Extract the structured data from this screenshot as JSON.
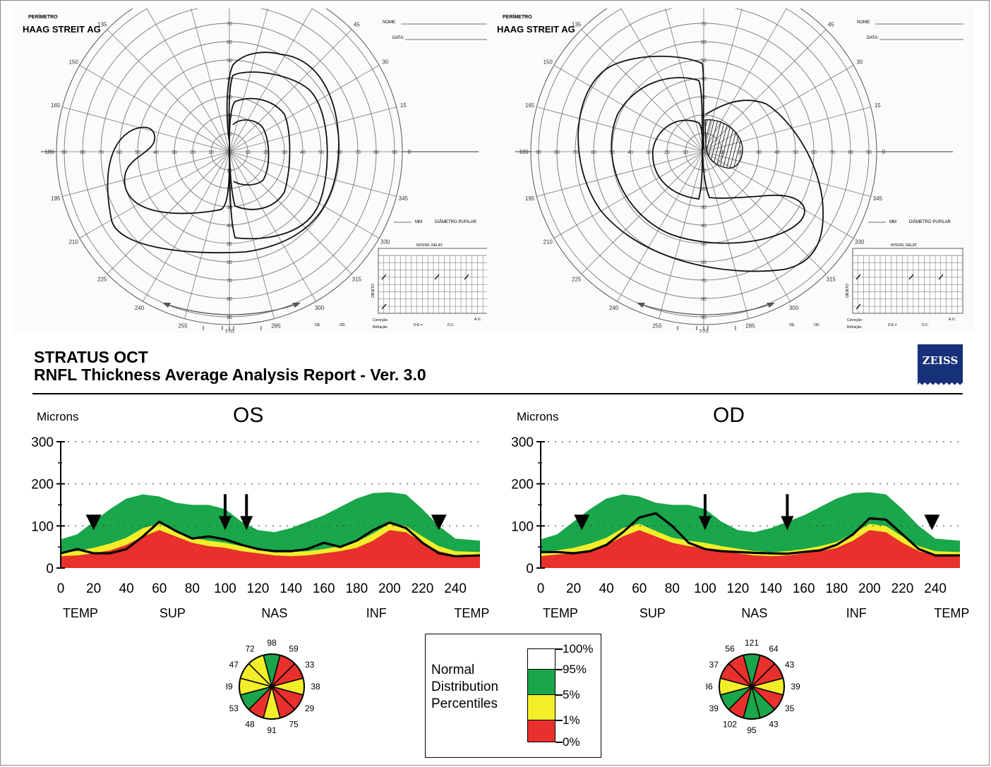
{
  "perimetry_left": {
    "brand_small": "PERÍMETRO",
    "brand": "HAAG STREIT AG",
    "nome": "NOME:",
    "data": "DATA:",
    "mm": "MM",
    "diametro": "DIÂMETRO PUPILAR",
    "intens": "INTENS. RELAT.",
    "objeto": "OBJETO",
    "correcao": "Correção:",
    "refracao": "Refração:",
    "de": "D.E.=",
    "dc": "D.C.",
    "av": "A.V.:",
    "oe": "OE.",
    "od": "OD.",
    "angle_labels": [
      "90",
      "75",
      "60",
      "45",
      "30",
      "15",
      "0",
      "345",
      "330",
      "315",
      "300",
      "285",
      "270",
      "255",
      "240",
      "225",
      "210",
      "195",
      "180",
      "165",
      "150",
      "135",
      "120",
      "105"
    ],
    "ring_labels": [
      "10",
      "20",
      "30",
      "40",
      "50",
      "60",
      "70",
      "80",
      "90"
    ]
  },
  "perimetry_right": {
    "brand_small": "PERÍMETRO",
    "brand": "HAAG STREIT AG",
    "nome": "NOME:",
    "data": "DATA:",
    "mm": "MM",
    "diametro": "DIÂMETRO PUPILAR",
    "intens": "INTENS. RELAT.",
    "objeto": "OBJETO",
    "correcao": "Correção:",
    "refracao": "Refração:",
    "de": "D.E.=",
    "dc": "D.C.",
    "av": "A.V.:",
    "oe": "OE.",
    "od": "OD."
  },
  "report": {
    "title_line1": "STRATUS OCT",
    "title_line2": "RNFL Thickness Average Analysis  Report - Ver. 3.0",
    "logo_text": "ZEISS"
  },
  "legend": {
    "title_lines": [
      "Normal",
      "Distribution",
      "Percentiles"
    ],
    "levels": [
      "100%",
      "95%",
      "5%",
      "1%",
      "0%"
    ],
    "colors": {
      "white": "#ffffff",
      "green": "#1aa64a",
      "yellow": "#f2ee2a",
      "red": "#e8302c"
    }
  },
  "chart_data": [
    {
      "type": "area",
      "title": "OS",
      "ylabel": "Microns",
      "xlim": [
        0,
        255
      ],
      "ylim": [
        0,
        300
      ],
      "x_ticks": [
        0,
        20,
        40,
        60,
        80,
        100,
        120,
        140,
        160,
        180,
        200,
        220,
        240
      ],
      "y_ticks": [
        0,
        100,
        200,
        300
      ],
      "region_labels": [
        "TEMP",
        "SUP",
        "NAS",
        "INF",
        "TEMP"
      ],
      "x": [
        0,
        10,
        20,
        30,
        40,
        50,
        60,
        70,
        80,
        90,
        100,
        110,
        120,
        130,
        140,
        150,
        160,
        170,
        180,
        190,
        200,
        210,
        220,
        230,
        240,
        255
      ],
      "series": [
        {
          "name": "1%",
          "values": [
            28,
            30,
            35,
            42,
            55,
            75,
            90,
            75,
            60,
            52,
            48,
            40,
            35,
            30,
            28,
            30,
            35,
            40,
            48,
            65,
            90,
            85,
            60,
            40,
            30,
            28
          ]
        },
        {
          "name": "5%",
          "values": [
            38,
            40,
            48,
            58,
            72,
            95,
            105,
            88,
            72,
            65,
            60,
            52,
            46,
            40,
            38,
            40,
            45,
            52,
            62,
            82,
            105,
            100,
            75,
            52,
            40,
            38
          ]
        },
        {
          "name": "95%",
          "values": [
            68,
            80,
            110,
            140,
            165,
            175,
            170,
            155,
            150,
            150,
            140,
            110,
            90,
            85,
            95,
            110,
            125,
            145,
            165,
            178,
            180,
            175,
            140,
            100,
            70,
            65
          ]
        },
        {
          "name": "Patient",
          "values": [
            35,
            45,
            35,
            35,
            45,
            75,
            110,
            88,
            70,
            75,
            68,
            55,
            45,
            40,
            40,
            45,
            60,
            50,
            65,
            90,
            108,
            95,
            60,
            35,
            28,
            30
          ]
        }
      ],
      "annotations": {
        "arrowheads_at_x": [
          20,
          230
        ],
        "arrows_at_x": [
          100,
          113
        ]
      },
      "sector_pie": {
        "values": [
          98,
          59,
          33,
          38,
          29,
          75,
          91,
          48,
          53,
          39,
          47,
          72
        ],
        "colors": [
          "green",
          "red",
          "red",
          "yellow",
          "red",
          "red",
          "yellow",
          "red",
          "green",
          "yellow",
          "yellow",
          "yellow"
        ]
      }
    },
    {
      "type": "area",
      "title": "OD",
      "ylabel": "Microns",
      "xlim": [
        0,
        255
      ],
      "ylim": [
        0,
        300
      ],
      "x_ticks": [
        0,
        20,
        40,
        60,
        80,
        100,
        120,
        140,
        160,
        180,
        200,
        220,
        240
      ],
      "y_ticks": [
        0,
        100,
        200,
        300
      ],
      "region_labels": [
        "TEMP",
        "SUP",
        "NAS",
        "INF",
        "TEMP"
      ],
      "x": [
        0,
        10,
        20,
        30,
        40,
        50,
        60,
        70,
        80,
        90,
        100,
        110,
        120,
        130,
        140,
        150,
        160,
        170,
        180,
        190,
        200,
        210,
        220,
        230,
        240,
        255
      ],
      "series": [
        {
          "name": "1%",
          "values": [
            28,
            32,
            35,
            42,
            55,
            75,
            90,
            75,
            60,
            52,
            48,
            40,
            35,
            30,
            28,
            30,
            35,
            40,
            48,
            65,
            90,
            85,
            60,
            40,
            30,
            28
          ]
        },
        {
          "name": "5%",
          "values": [
            38,
            42,
            48,
            58,
            72,
            95,
            105,
            88,
            72,
            65,
            60,
            52,
            46,
            40,
            38,
            40,
            45,
            52,
            62,
            82,
            105,
            100,
            75,
            52,
            40,
            38
          ]
        },
        {
          "name": "95%",
          "values": [
            68,
            80,
            110,
            140,
            165,
            175,
            170,
            155,
            150,
            150,
            140,
            110,
            90,
            85,
            95,
            110,
            125,
            145,
            165,
            178,
            180,
            175,
            140,
            100,
            70,
            65
          ]
        },
        {
          "name": "Patient",
          "values": [
            38,
            38,
            35,
            40,
            55,
            85,
            120,
            130,
            100,
            60,
            45,
            40,
            38,
            36,
            35,
            34,
            38,
            42,
            55,
            80,
            118,
            115,
            80,
            45,
            30,
            30
          ]
        }
      ],
      "annotations": {
        "arrowheads_at_x": [
          25,
          238
        ],
        "arrows_at_x": [
          100,
          150
        ]
      },
      "sector_pie": {
        "values": [
          121,
          64,
          43,
          39,
          35,
          43,
          95,
          102,
          39,
          36,
          37,
          56
        ],
        "colors": [
          "green",
          "red",
          "red",
          "yellow",
          "red",
          "green",
          "green",
          "red",
          "green",
          "yellow",
          "red",
          "red"
        ]
      }
    }
  ]
}
